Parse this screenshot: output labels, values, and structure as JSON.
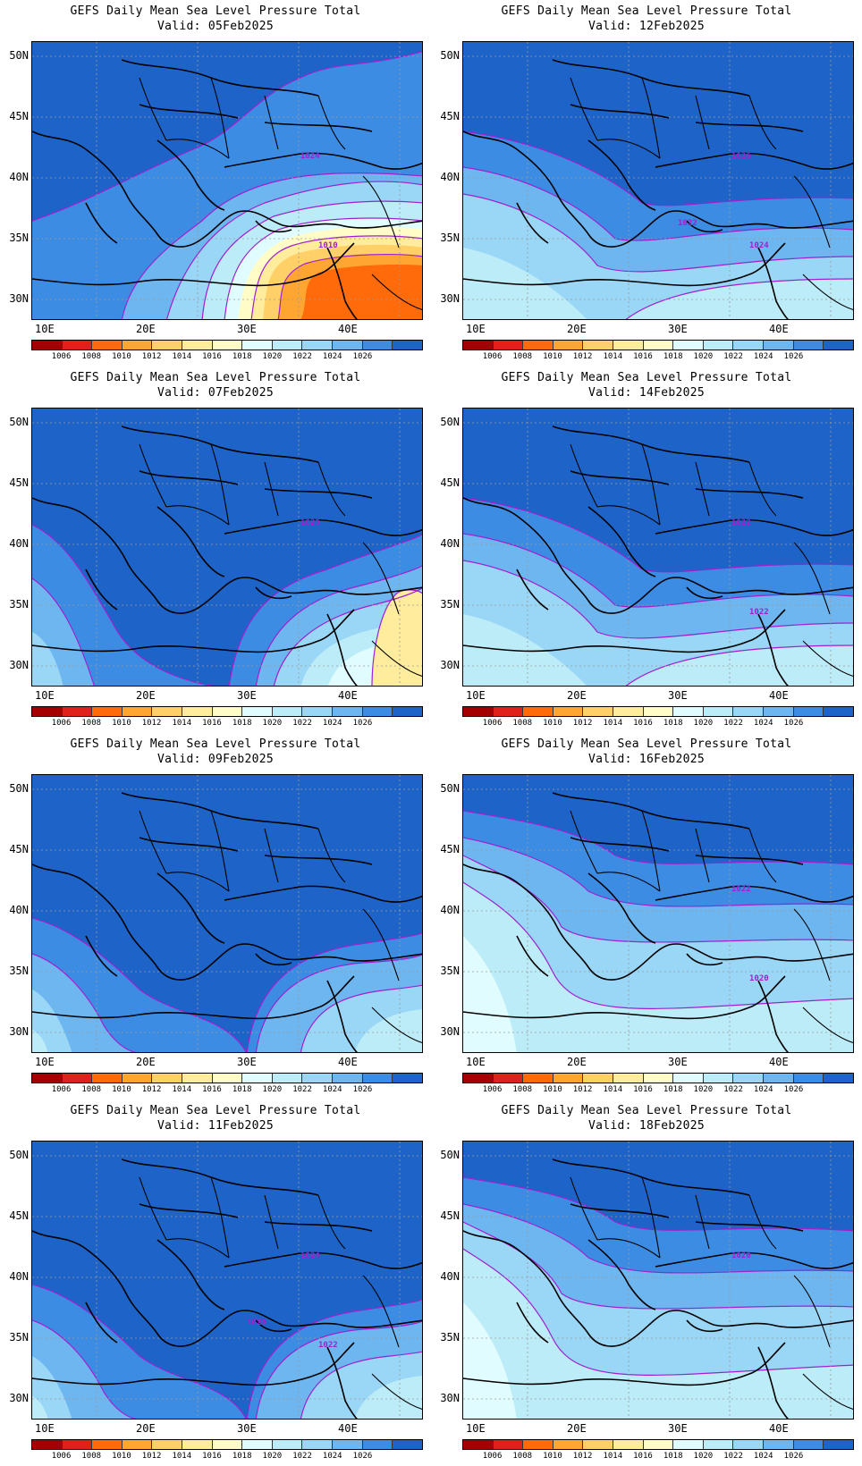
{
  "title_line1": "GEFS Daily Mean Sea Level Pressure Total",
  "lat_labels": [
    "50N",
    "45N",
    "40N",
    "35N",
    "30N"
  ],
  "lon_labels": [
    "10E",
    "20E",
    "30E",
    "40E"
  ],
  "colorbar": {
    "colors": [
      "#a50000",
      "#e0201a",
      "#ff6a0a",
      "#ffa632",
      "#ffd068",
      "#ffec9c",
      "#fffcc8",
      "#e0fcff",
      "#bcecf8",
      "#9ad6f6",
      "#6eb6f0",
      "#3c8ce4",
      "#1e64c8"
    ],
    "labels": [
      "1006",
      "1008",
      "1010",
      "1012",
      "1014",
      "1016",
      "1018",
      "1020",
      "1022",
      "1024",
      "1026"
    ]
  },
  "panels": [
    {
      "date": "Valid:  05Feb2025",
      "contour_labels": [
        "1024",
        "1010"
      ],
      "regime": "low-east",
      "high_cells": [],
      "low_core": "1010"
    },
    {
      "date": "Valid:  12Feb2025",
      "contour_labels": [
        "1026",
        "1024",
        "1022"
      ],
      "regime": "moderate",
      "high_cells": [],
      "low_core": ""
    },
    {
      "date": "Valid:  07Feb2025",
      "contour_labels": [
        "1020"
      ],
      "regime": "high-north-low-east",
      "high_cells": [],
      "low_core": ""
    },
    {
      "date": "Valid:  14Feb2025",
      "contour_labels": [
        "1022",
        "1022"
      ],
      "regime": "moderate",
      "high_cells": [],
      "low_core": ""
    },
    {
      "date": "Valid:  09Feb2025",
      "contour_labels": [],
      "regime": "high-north",
      "high_cells": [],
      "low_core": ""
    },
    {
      "date": "Valid:  16Feb2025",
      "contour_labels": [
        "1022",
        "1020"
      ],
      "regime": "weak",
      "high_cells": [],
      "low_core": ""
    },
    {
      "date": "Valid:  11Feb2025",
      "contour_labels": [
        "1024",
        "1022",
        "1020"
      ],
      "regime": "high-north",
      "high_cells": [],
      "low_core": ""
    },
    {
      "date": "Valid:  18Feb2025",
      "contour_labels": [
        "1020"
      ],
      "regime": "weak",
      "high_cells": [],
      "low_core": ""
    }
  ]
}
